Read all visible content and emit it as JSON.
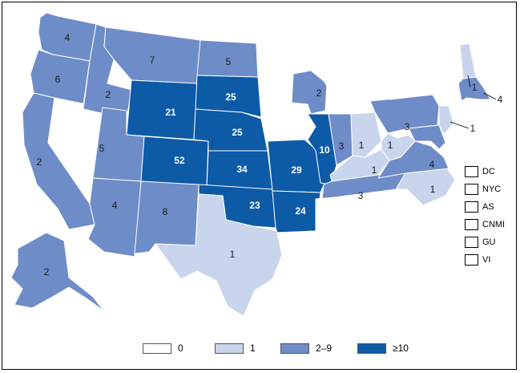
{
  "colors": {
    "c0": "#ffffff",
    "c1": "#c9d5ec",
    "c2": "#6e8cc8",
    "c10": "#0d5aa7",
    "border": "#000000"
  },
  "legend": [
    {
      "label": "0",
      "class": "c0"
    },
    {
      "label": "1",
      "class": "c1"
    },
    {
      "label": "2–9",
      "class": "c2"
    },
    {
      "label": "≥10",
      "class": "c10"
    }
  ],
  "territories": [
    "DC",
    "NYC",
    "AS",
    "CNMI",
    "GU",
    "VI"
  ],
  "states": {
    "WA": {
      "value": "4",
      "class": "c2"
    },
    "OR": {
      "value": "6",
      "class": "c2"
    },
    "CA": {
      "value": "2",
      "class": "c2"
    },
    "ID": {
      "value": "2",
      "class": "c2"
    },
    "NV": {
      "value": "",
      "class": "c0"
    },
    "MT": {
      "value": "7",
      "class": "c2"
    },
    "WY": {
      "value": "21",
      "class": "c10"
    },
    "UT": {
      "value": "5",
      "class": "c2"
    },
    "AZ": {
      "value": "4",
      "class": "c2"
    },
    "CO": {
      "value": "52",
      "class": "c10"
    },
    "NM": {
      "value": "8",
      "class": "c2"
    },
    "ND": {
      "value": "5",
      "class": "c2"
    },
    "SD": {
      "value": "25",
      "class": "c10"
    },
    "NE": {
      "value": "25",
      "class": "c10"
    },
    "KS": {
      "value": "34",
      "class": "c10"
    },
    "OK": {
      "value": "23",
      "class": "c10"
    },
    "TX": {
      "value": "1",
      "class": "c1"
    },
    "MN": {
      "value": "",
      "class": "c0"
    },
    "IA": {
      "value": "",
      "class": "c0"
    },
    "MO": {
      "value": "29",
      "class": "c10"
    },
    "AR": {
      "value": "24",
      "class": "c10"
    },
    "LA": {
      "value": "",
      "class": "c0"
    },
    "WI": {
      "value": "2",
      "class": "c2"
    },
    "IL": {
      "value": "10",
      "class": "c10"
    },
    "MI": {
      "value": "",
      "class": "c0"
    },
    "IN": {
      "value": "3",
      "class": "c2"
    },
    "OH": {
      "value": "1",
      "class": "c1"
    },
    "KY": {
      "value": "1",
      "class": "c1"
    },
    "TN": {
      "value": "3",
      "class": "c2"
    },
    "MS": {
      "value": "",
      "class": "c0"
    },
    "AL": {
      "value": "",
      "class": "c0"
    },
    "GA": {
      "value": "",
      "class": "c0"
    },
    "FL": {
      "value": "",
      "class": "c0"
    },
    "SC": {
      "value": "",
      "class": "c0"
    },
    "NC": {
      "value": "1",
      "class": "c1"
    },
    "VA": {
      "value": "4",
      "class": "c2"
    },
    "WV": {
      "value": "1",
      "class": "c1"
    },
    "PA": {
      "value": "3",
      "class": "c2"
    },
    "NY": {
      "value": "",
      "class": "c0"
    },
    "NJ": {
      "value": "1",
      "class": "c1"
    },
    "NH": {
      "value": "1",
      "class": "c1"
    },
    "MA": {
      "value": "4",
      "class": "c2"
    },
    "ME": {
      "value": "",
      "class": "c0"
    },
    "VT": {
      "value": "",
      "class": "c0"
    },
    "MD": {
      "value": "",
      "class": "c2"
    },
    "AK": {
      "value": "2",
      "class": "c2"
    },
    "HI": {
      "value": "",
      "class": "c0"
    },
    "PR": {
      "value": "",
      "class": "c0"
    }
  }
}
